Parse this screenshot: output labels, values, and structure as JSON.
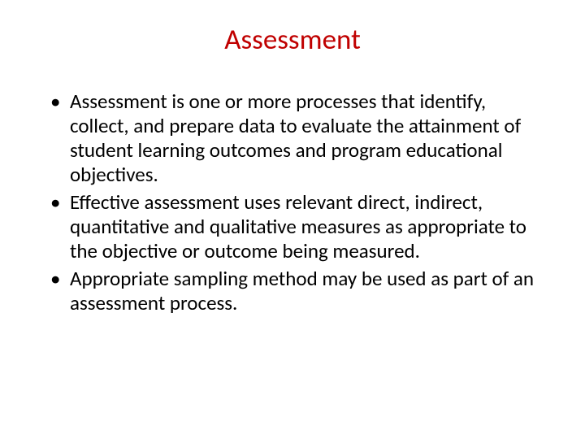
{
  "slide": {
    "title": "Assessment",
    "title_color": "#c00000",
    "title_fontsize": 35,
    "body_fontsize": 25,
    "body_color": "#000000",
    "background_color": "#ffffff",
    "bullets": [
      "Assessment is one or more processes that identify, collect, and prepare data to evaluate the attainment of student learning outcomes and program educational objectives.",
      "Effective assessment uses relevant direct, indirect, quantitative and qualitative measures as appropriate to the objective or outcome being measured.",
      "Appropriate sampling method may be used as part of an assessment process."
    ]
  }
}
